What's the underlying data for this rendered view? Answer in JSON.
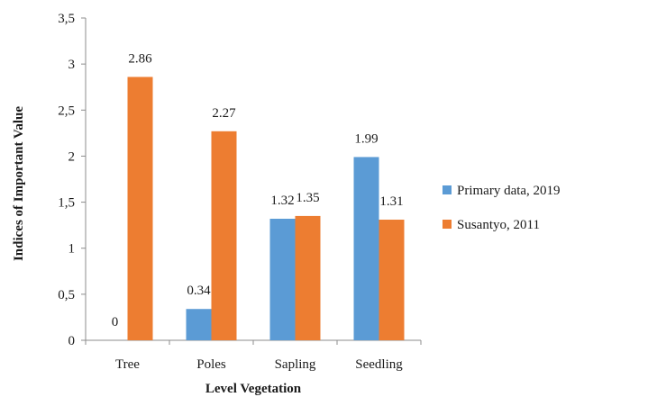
{
  "chart_data": {
    "type": "bar",
    "categories": [
      "Tree",
      "Poles",
      "Sapling",
      "Seedling"
    ],
    "series": [
      {
        "name": "Primary data, 2019",
        "values": [
          0,
          0.34,
          1.32,
          1.99
        ],
        "labels": [
          "0",
          "0.34",
          "1.32",
          "1.99"
        ],
        "color": "#5b9bd5"
      },
      {
        "name": "Susantyo, 2011",
        "values": [
          2.86,
          2.27,
          1.35,
          1.31
        ],
        "labels": [
          "2.86",
          "2.27",
          "1.35",
          "1.31"
        ],
        "color": "#ed7d31"
      }
    ],
    "xlabel": "Level Vegetation",
    "ylabel": "Indices of Important  Value",
    "ylim": [
      0,
      3.5
    ],
    "yticks": [
      0,
      0.5,
      1,
      1.5,
      2,
      2.5,
      3,
      3.5
    ],
    "ytick_labels": [
      "0",
      "0,5",
      "1",
      "1,5",
      "2",
      "2,5",
      "3",
      "3,5"
    ],
    "grid": false,
    "legend_position": "right"
  }
}
